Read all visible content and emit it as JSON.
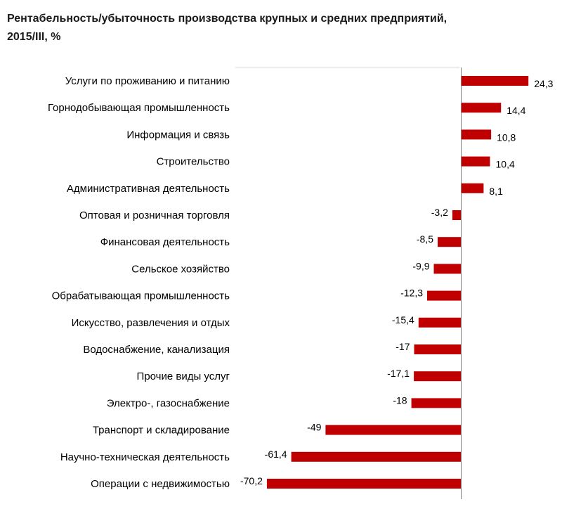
{
  "chart_data": {
    "type": "bar",
    "orientation": "horizontal",
    "title": "Рентабельность/убыточность  производства  крупных  и средних предприятий,  2015/III, %",
    "categories": [
      "Услуги по проживанию и питанию",
      "Горнодобывающая промышленность",
      "Информация и связь",
      "Строительство",
      "Административная деятельность",
      "Оптовая и розничная торговля",
      "Финансовая деятельность",
      "Сельское хозяйство",
      "Обрабатывающая промышленность",
      "Искусство, развлечения и отдых",
      "Водоснабжение, канализация",
      "Прочие виды услуг",
      "Электро-, газоснабжение",
      "Транспорт и складирование",
      "Научно-техническая деятельность",
      "Операции с недвижимостью"
    ],
    "values": [
      24.3,
      14.4,
      10.8,
      10.4,
      8.1,
      -3.2,
      -8.5,
      -9.9,
      -12.3,
      -15.4,
      -17,
      -17.1,
      -18,
      -49,
      -61.4,
      -70.2
    ],
    "value_labels": [
      "24,3",
      "14,4",
      "10,8",
      "10,4",
      "8,1",
      "-3,2",
      "-8,5",
      "-9,9",
      "-12,3",
      "-15,4",
      "-17",
      "-17,1",
      "-18",
      "-49",
      "-61,4",
      "-70,2"
    ],
    "xlim": [
      -72,
      36
    ],
    "bar_color": "#c00000",
    "axis_color": "#7f7f7f",
    "grid": false,
    "legend": "none"
  }
}
